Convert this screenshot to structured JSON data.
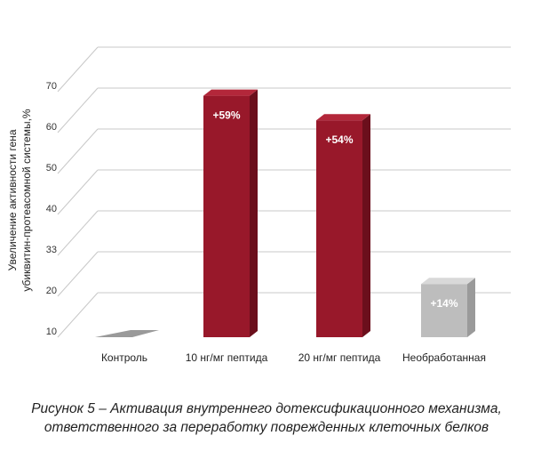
{
  "chart_data": {
    "type": "bar",
    "categories": [
      "Контроль",
      "10 нг/мг пептида",
      "20 нг/мг пептида",
      "Необработанная"
    ],
    "values": [
      10,
      69,
      63,
      23
    ],
    "data_labels": [
      "",
      "+59%",
      "+54%",
      "+14%"
    ],
    "ylabel_lines": [
      "Увеличение активности гена",
      "убиквитин-протеасомной системы,%"
    ],
    "yticks": [
      "10",
      "20",
      "33",
      "40",
      "50",
      "60",
      "70"
    ],
    "ylim": [
      10,
      70
    ],
    "grid": true,
    "colors": {
      "highlight_front": "#98182a",
      "highlight_side": "#6b0f1c",
      "highlight_top": "#b3273a",
      "neutral_front": "#bdbdbd",
      "neutral_side": "#9a9a9a",
      "neutral_top": "#d9d9d9",
      "grid": "#c8c8c8"
    },
    "bar_color_keys": [
      "neutral",
      "highlight",
      "highlight",
      "neutral"
    ]
  },
  "caption": {
    "line1": "Рисунок 5 – Активация внутреннего дотексификационного механизма,",
    "line2": "ответственного за переработку поврежденных клеточных белков"
  }
}
